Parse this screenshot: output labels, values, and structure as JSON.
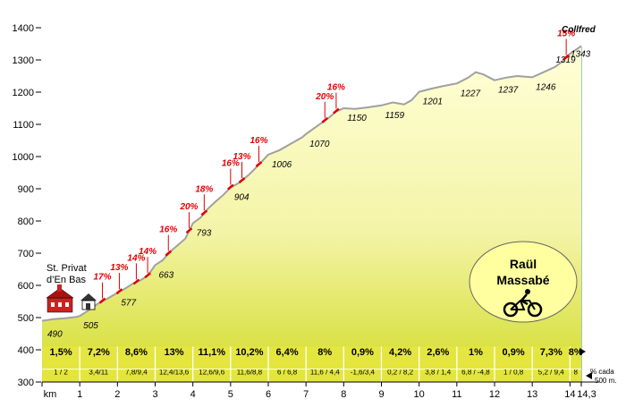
{
  "chart_data": {
    "type": "area",
    "title": "",
    "xlabel": "km",
    "ylabel": "",
    "ylim": [
      300,
      1400
    ],
    "xlim": [
      0,
      14.3
    ],
    "y_ticks": [
      "1400",
      "1300",
      "1200",
      "1100",
      "1000",
      "900",
      "800",
      "700",
      "600",
      "500",
      "400",
      "300"
    ],
    "x_ticks": [
      {
        "x": 0,
        "label": "km"
      },
      {
        "x": 1,
        "label": "1"
      },
      {
        "x": 2,
        "label": "2"
      },
      {
        "x": 3,
        "label": "3"
      },
      {
        "x": 4,
        "label": "4"
      },
      {
        "x": 5,
        "label": "5"
      },
      {
        "x": 6,
        "label": "6"
      },
      {
        "x": 7,
        "label": "7"
      },
      {
        "x": 8,
        "label": "8"
      },
      {
        "x": 9,
        "label": "9"
      },
      {
        "x": 10,
        "label": "10"
      },
      {
        "x": 11,
        "label": "11"
      },
      {
        "x": 12,
        "label": "12"
      },
      {
        "x": 13,
        "label": "13"
      },
      {
        "x": 14,
        "label": "14"
      },
      {
        "x": 14.3,
        "label": "14,3"
      }
    ],
    "profile": [
      [
        0,
        490
      ],
      [
        0.3,
        495
      ],
      [
        0.6,
        498
      ],
      [
        0.9,
        502
      ],
      [
        1,
        505
      ],
      [
        1.2,
        520
      ],
      [
        1.5,
        545
      ],
      [
        1.75,
        560
      ],
      [
        2,
        577
      ],
      [
        2.2,
        590
      ],
      [
        2.4,
        605
      ],
      [
        2.6,
        615
      ],
      [
        2.8,
        630
      ],
      [
        3,
        663
      ],
      [
        3.2,
        678
      ],
      [
        3.4,
        705
      ],
      [
        3.6,
        725
      ],
      [
        3.8,
        745
      ],
      [
        4,
        793
      ],
      [
        4.2,
        810
      ],
      [
        4.4,
        838
      ],
      [
        4.6,
        860
      ],
      [
        4.8,
        880
      ],
      [
        5,
        904
      ],
      [
        5.25,
        920
      ],
      [
        5.5,
        945
      ],
      [
        5.75,
        975
      ],
      [
        6,
        1006
      ],
      [
        6.3,
        1020
      ],
      [
        6.6,
        1040
      ],
      [
        6.9,
        1060
      ],
      [
        7,
        1070
      ],
      [
        7.3,
        1095
      ],
      [
        7.6,
        1120
      ],
      [
        7.8,
        1140
      ],
      [
        8,
        1150
      ],
      [
        8.3,
        1148
      ],
      [
        8.6,
        1152
      ],
      [
        9,
        1159
      ],
      [
        9.3,
        1168
      ],
      [
        9.6,
        1162
      ],
      [
        9.8,
        1175
      ],
      [
        10,
        1201
      ],
      [
        10.3,
        1210
      ],
      [
        10.6,
        1218
      ],
      [
        11,
        1227
      ],
      [
        11.3,
        1245
      ],
      [
        11.5,
        1262
      ],
      [
        11.7,
        1255
      ],
      [
        12,
        1237
      ],
      [
        12.3,
        1245
      ],
      [
        12.6,
        1250
      ],
      [
        13,
        1246
      ],
      [
        13.3,
        1262
      ],
      [
        13.6,
        1278
      ],
      [
        13.8,
        1295
      ],
      [
        14,
        1319
      ],
      [
        14.3,
        1343
      ]
    ],
    "altitudes": [
      {
        "x": 0,
        "value": "490"
      },
      {
        "x": 1,
        "value": "505"
      },
      {
        "x": 2,
        "value": "577"
      },
      {
        "x": 3,
        "value": "663"
      },
      {
        "x": 4,
        "value": "793"
      },
      {
        "x": 5,
        "value": "904"
      },
      {
        "x": 6,
        "value": "1006"
      },
      {
        "x": 7,
        "value": "1070"
      },
      {
        "x": 8,
        "value": "1150"
      },
      {
        "x": 9,
        "value": "1159"
      },
      {
        "x": 10,
        "value": "1201"
      },
      {
        "x": 11,
        "value": "1227"
      },
      {
        "x": 12,
        "value": "1237"
      },
      {
        "x": 13,
        "value": "1246"
      },
      {
        "x": 14,
        "value": "1319"
      },
      {
        "x": 14.3,
        "value": "1343"
      }
    ],
    "segments": [
      {
        "grade": "1,5%",
        "sub": "1 / 2"
      },
      {
        "grade": "7,2%",
        "sub": "3,4/11"
      },
      {
        "grade": "8,6%",
        "sub": "7,8/9,4"
      },
      {
        "grade": "13%",
        "sub": "12,4/13,6"
      },
      {
        "grade": "11,1%",
        "sub": "12,6/9,6"
      },
      {
        "grade": "10,2%",
        "sub": "11,6/8,8"
      },
      {
        "grade": "6,4%",
        "sub": "6 / 6,8"
      },
      {
        "grade": "8%",
        "sub": "11,6 / 4,4"
      },
      {
        "grade": "0,9%",
        "sub": "-1,6/3,4"
      },
      {
        "grade": "4,2%",
        "sub": "0,2 / 8,2"
      },
      {
        "grade": "2,6%",
        "sub": "3,8 / 1,4"
      },
      {
        "grade": "1%",
        "sub": "6,8 / -4,8"
      },
      {
        "grade": "0,9%",
        "sub": "1 / 0,8"
      },
      {
        "grade": "7,3%",
        "sub": "5,2 / 9,4"
      },
      {
        "grade": "8%",
        "sub": "8"
      }
    ],
    "steep_labels": [
      {
        "x": 1.6,
        "label": "17%"
      },
      {
        "x": 2.05,
        "label": "13%"
      },
      {
        "x": 2.5,
        "label": "14%"
      },
      {
        "x": 2.8,
        "label": "14%"
      },
      {
        "x": 3.35,
        "label": "16%"
      },
      {
        "x": 3.9,
        "label": "20%"
      },
      {
        "x": 4.3,
        "label": "18%"
      },
      {
        "x": 5.0,
        "label": "16%"
      },
      {
        "x": 5.3,
        "label": "13%"
      },
      {
        "x": 5.75,
        "label": "16%"
      },
      {
        "x": 7.5,
        "label": "20%"
      },
      {
        "x": 7.8,
        "label": "16%"
      },
      {
        "x": 13.9,
        "label": "15%"
      }
    ],
    "start_label": [
      "St. Privat",
      "d’En Bas"
    ],
    "end_label": "Collfred",
    "unit_note": [
      "% cada",
      "500 m."
    ],
    "author": [
      "Raül",
      "Massabé"
    ],
    "colors": {
      "fill_top": "#ffffd0",
      "fill_bottom": "#c8d400",
      "bar": "#e6e640",
      "steep": "#e00000",
      "badge": "#ffffa0",
      "outline": "#999999"
    }
  }
}
